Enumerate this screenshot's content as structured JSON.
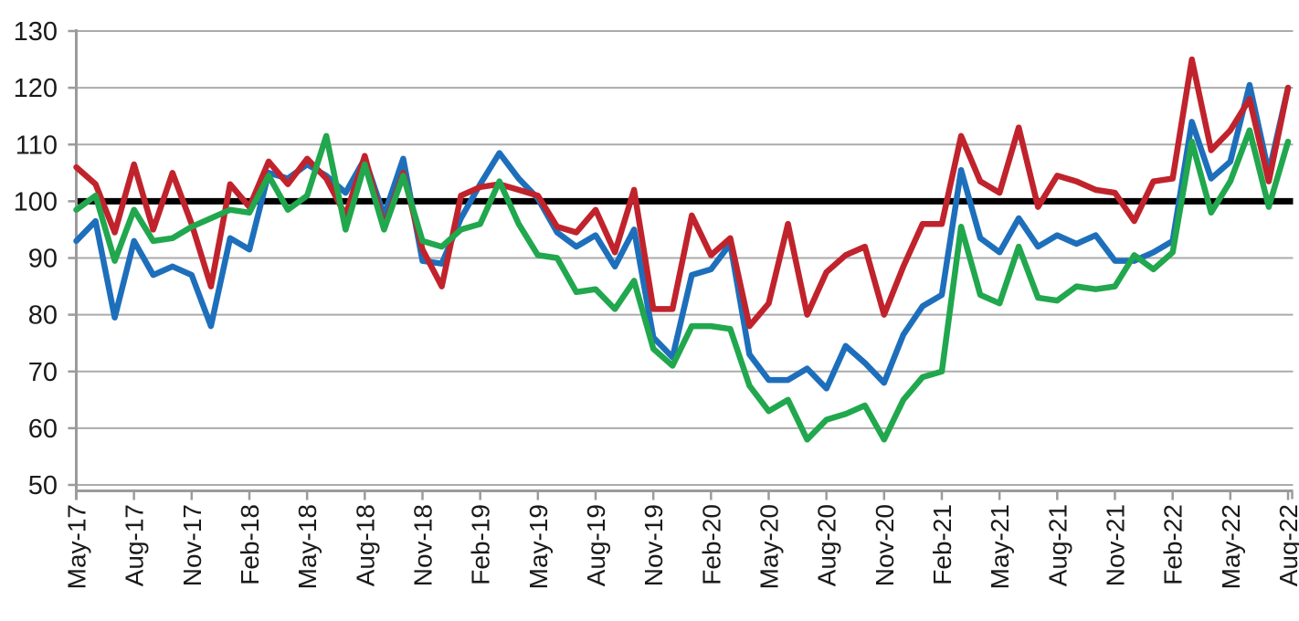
{
  "chart_data": {
    "type": "line",
    "title": "",
    "xlabel": "",
    "ylabel": "",
    "legend": "none",
    "grid": "horizontal",
    "ylim": [
      50,
      130
    ],
    "ytick_step": 10,
    "yticks": [
      130,
      120,
      110,
      100,
      90,
      80,
      70,
      60,
      50
    ],
    "tick_every": 3,
    "x_tick_labels": [
      "May-17",
      "Aug-17",
      "Nov-17",
      "Feb-18",
      "May-18",
      "Aug-18",
      "Nov-18",
      "Feb-19",
      "May-19",
      "Aug-19",
      "Nov-19",
      "Feb-20",
      "May-20",
      "Aug-20",
      "Nov-20",
      "Feb-21",
      "May-21",
      "Aug-21",
      "Nov-21",
      "Feb-22",
      "May-22",
      "Aug-22"
    ],
    "months": [
      "May-17",
      "Jun-17",
      "Jul-17",
      "Aug-17",
      "Sep-17",
      "Oct-17",
      "Nov-17",
      "Dec-17",
      "Jan-18",
      "Feb-18",
      "Mar-18",
      "Apr-18",
      "May-18",
      "Jun-18",
      "Jul-18",
      "Aug-18",
      "Sep-18",
      "Oct-18",
      "Nov-18",
      "Dec-18",
      "Jan-19",
      "Feb-19",
      "Mar-19",
      "Apr-19",
      "May-19",
      "Jun-19",
      "Jul-19",
      "Aug-19",
      "Sep-19",
      "Oct-19",
      "Nov-19",
      "Dec-19",
      "Jan-20",
      "Feb-20",
      "Mar-20",
      "Apr-20",
      "May-20",
      "Jun-20",
      "Jul-20",
      "Aug-20",
      "Sep-20",
      "Oct-20",
      "Nov-20",
      "Dec-20",
      "Jan-21",
      "Feb-21",
      "Mar-21",
      "Apr-21",
      "May-21",
      "Jun-21",
      "Jul-21",
      "Aug-21",
      "Sep-21",
      "Oct-21",
      "Nov-21",
      "Dec-21",
      "Jan-22",
      "Feb-22",
      "Mar-22",
      "Apr-22",
      "May-22",
      "Jun-22",
      "Jul-22",
      "Aug-22"
    ],
    "reference_line": {
      "name": "baseline-100",
      "value": 100,
      "color": "#000000",
      "width": 7
    },
    "series": [
      {
        "name": "blue",
        "color": "#1E6FBB",
        "values": [
          93,
          96.5,
          79.5,
          93,
          87,
          88.5,
          87,
          78,
          93.5,
          91.5,
          105,
          104,
          106.5,
          104.5,
          101.5,
          107.5,
          97.5,
          107.5,
          89.5,
          89,
          97,
          103,
          108.5,
          104,
          100.5,
          94.5,
          92,
          94,
          88.5,
          95,
          76,
          72.5,
          87,
          88,
          92.5,
          73,
          68.5,
          68.5,
          70.5,
          67,
          74.5,
          71.5,
          68,
          76.5,
          81.5,
          83.5,
          105.5,
          93.5,
          91,
          97,
          92,
          94,
          92.5,
          94,
          89.5,
          89.5,
          91,
          93,
          114,
          104,
          107,
          120.5,
          105,
          120
        ]
      },
      {
        "name": "red",
        "color": "#C0232C",
        "values": [
          106,
          103,
          94.5,
          106.5,
          95,
          105,
          96,
          85,
          103,
          99,
          107,
          103,
          107.5,
          104,
          97.5,
          108,
          95.5,
          105,
          91.5,
          85,
          101,
          102.5,
          103,
          102,
          101,
          95.5,
          94.5,
          98.5,
          91,
          102,
          81,
          81,
          97.5,
          90.5,
          93.5,
          78,
          82,
          96,
          80,
          87.5,
          90.5,
          92,
          80,
          88.5,
          96,
          96,
          111.5,
          103.5,
          101.5,
          113,
          99,
          104.5,
          103.5,
          102,
          101.5,
          96.5,
          103.5,
          104,
          125,
          109,
          112.5,
          118,
          103.5,
          120
        ]
      },
      {
        "name": "green",
        "color": "#21A74D",
        "values": [
          98.5,
          101,
          89.5,
          98.5,
          93,
          93.5,
          95.5,
          97,
          98.5,
          98,
          104.5,
          98.5,
          101,
          111.5,
          95,
          106.5,
          95,
          104.5,
          93,
          92,
          95,
          96,
          103.5,
          96,
          90.5,
          90,
          84,
          84.5,
          81,
          86,
          74,
          71,
          78,
          78,
          77.5,
          67.5,
          63,
          65,
          58,
          61.5,
          62.5,
          64,
          58,
          65,
          69,
          70,
          95.5,
          83.5,
          82,
          92,
          83,
          82.5,
          85,
          84.5,
          85,
          90.5,
          88,
          91,
          110.5,
          98,
          103.5,
          112.5,
          99,
          110.5
        ]
      }
    ],
    "colors": {
      "grid": "#ABABAB",
      "axis": "#9B9B9B",
      "text": "#1a1a1a",
      "background": "#ffffff"
    }
  }
}
